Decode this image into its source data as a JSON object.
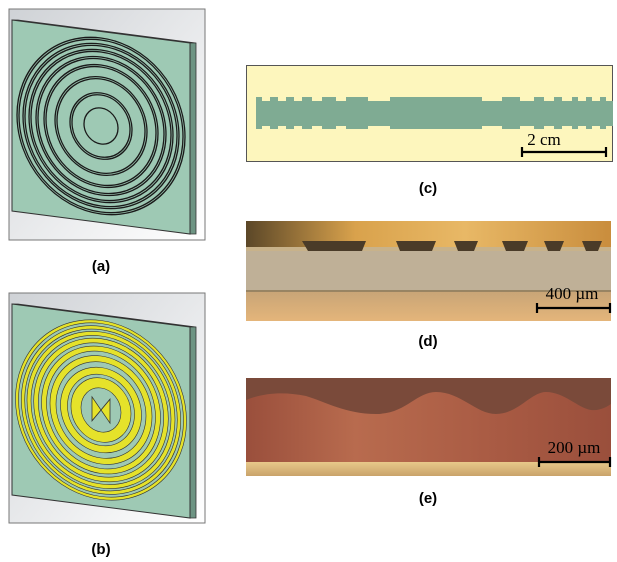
{
  "figure": {
    "panels": [
      {
        "id": "a",
        "caption": "(a)",
        "kind": "3d-model-grooved-lens"
      },
      {
        "id": "b",
        "caption": "(b)",
        "kind": "3d-model-lens-with-bowtie-antenna"
      },
      {
        "id": "c",
        "caption": "(c)",
        "kind": "cross-section-schematic",
        "scale_bar": "2 cm"
      },
      {
        "id": "d",
        "caption": "(d)",
        "kind": "micrograph",
        "scale_bar": "400 µm"
      },
      {
        "id": "e",
        "caption": "(e)",
        "kind": "micrograph",
        "scale_bar": "200 µm"
      }
    ]
  },
  "colors": {
    "substrate": "#9ec9b4",
    "gold": "#e5e22a",
    "panel_c_background": "#fdf6bd",
    "micrograph_d": "#c8b28a",
    "micrograph_e": "#9a4f3c"
  }
}
